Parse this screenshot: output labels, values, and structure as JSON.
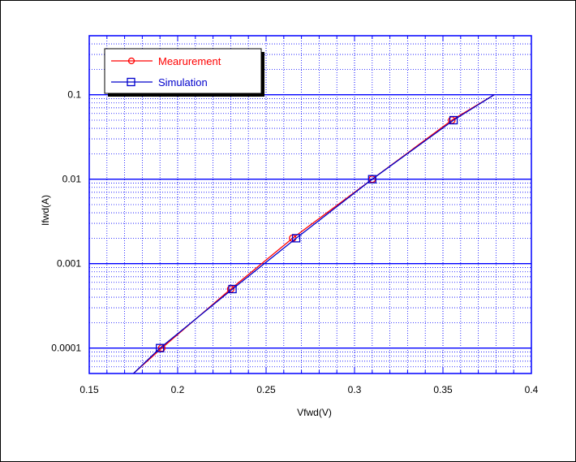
{
  "chart_data": {
    "type": "line",
    "title": "",
    "xlabel": "Vfwd(V)",
    "ylabel": "Ifwd(A)",
    "xlim": [
      0.15,
      0.4
    ],
    "ylim": [
      5e-05,
      0.5
    ],
    "yscale": "log",
    "grid": true,
    "legend_position": "top-left",
    "x_ticks": [
      "0.15",
      "0.2",
      "0.25",
      "0.3",
      "0.35",
      "0.4"
    ],
    "y_ticks": [
      "0.0001",
      "0.001",
      "0.01",
      "0.1"
    ],
    "colors": {
      "grid": "#0000ff",
      "frame": "#0000ff",
      "measurement": "#ff0000",
      "simulation": "#0000cc"
    },
    "series": [
      {
        "name": "Mearurement",
        "color": "#ff0000",
        "marker": "circle",
        "x": [
          0.175,
          0.191,
          0.23,
          0.265,
          0.31,
          0.355,
          0.379
        ],
        "y": [
          5e-05,
          0.0001,
          0.0005,
          0.002,
          0.01,
          0.05,
          0.1
        ],
        "marker_x": [
          0.191,
          0.23,
          0.265,
          0.31,
          0.355
        ],
        "marker_y": [
          0.0001,
          0.0005,
          0.002,
          0.01,
          0.05
        ]
      },
      {
        "name": "Simulation",
        "color": "#0000cc",
        "marker": "square",
        "x": [
          0.175,
          0.19,
          0.231,
          0.267,
          0.31,
          0.356,
          0.379
        ],
        "y": [
          5e-05,
          0.0001,
          0.0005,
          0.002,
          0.01,
          0.05,
          0.1
        ],
        "marker_x": [
          0.19,
          0.231,
          0.267,
          0.31,
          0.356
        ],
        "marker_y": [
          0.0001,
          0.0005,
          0.002,
          0.01,
          0.05
        ]
      }
    ]
  }
}
